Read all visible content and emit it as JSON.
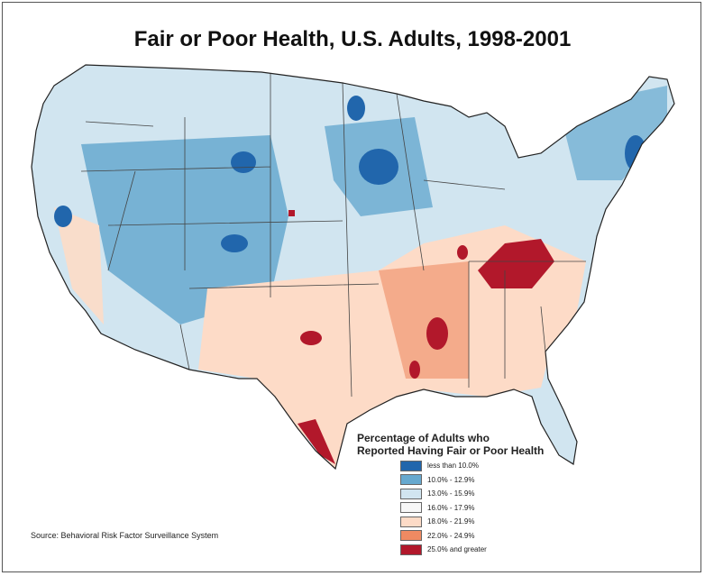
{
  "title": "Fair or Poor Health, U.S. Adults, 1998-2001",
  "legend": {
    "title_line1": "Percentage of Adults who",
    "title_line2": "Reported Having Fair or Poor Health",
    "items": [
      {
        "label": "less than 10.0%",
        "color": "#2166ac"
      },
      {
        "label": "10.0% - 12.9%",
        "color": "#67a9cf"
      },
      {
        "label": "13.0% - 15.9%",
        "color": "#d1e5f0"
      },
      {
        "label": "16.0% - 17.9%",
        "color": "#f7f7f7"
      },
      {
        "label": "18.0% - 21.9%",
        "color": "#fddbc7"
      },
      {
        "label": "22.0% - 24.9%",
        "color": "#ef8a62"
      },
      {
        "label": "25.0% and greater",
        "color": "#b2182b"
      }
    ]
  },
  "source": "Source:  Behavioral Risk Factor Surveillance System"
}
